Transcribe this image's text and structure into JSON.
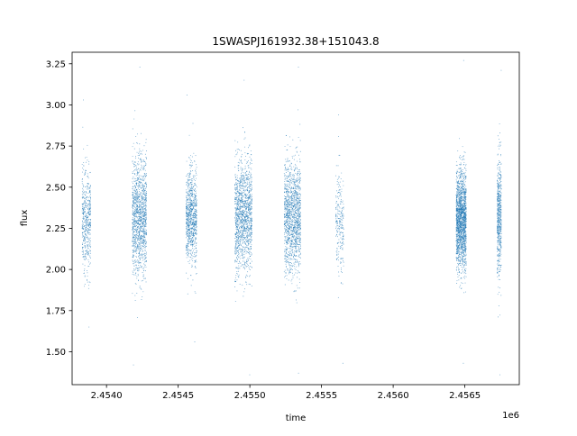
{
  "chart_data": {
    "type": "scatter",
    "title": "1SWASPJ161932.38+151043.8",
    "xlabel": "time",
    "ylabel": "flux",
    "x_offset_label": "1e6",
    "xlim": [
      2453760,
      2456880
    ],
    "ylim": [
      1.3,
      3.32
    ],
    "grid": false,
    "legend": "none",
    "marker_color": "#1f77b4",
    "x_ticks": [
      2453800,
      2454000,
      2454200,
      2454400,
      2454600,
      2454800,
      2455000,
      2455200,
      2455400,
      2455600,
      2455800,
      2456000,
      2456200,
      2456400,
      2456600,
      2456800
    ],
    "x_ticks_shown": [
      {
        "value": 2454000,
        "label": "2.4540"
      },
      {
        "value": 2454500,
        "label": "2.4545"
      },
      {
        "value": 2455000,
        "label": "2.4550"
      },
      {
        "value": 2455500,
        "label": "2.4555"
      },
      {
        "value": 2456000,
        "label": "2.4560"
      },
      {
        "value": 2456500,
        "label": "2.4565"
      }
    ],
    "y_ticks": [
      {
        "value": 1.5,
        "label": "1.50"
      },
      {
        "value": 1.75,
        "label": "1.75"
      },
      {
        "value": 2.0,
        "label": "2.00"
      },
      {
        "value": 2.25,
        "label": "2.25"
      },
      {
        "value": 2.5,
        "label": "2.50"
      },
      {
        "value": 2.75,
        "label": "2.75"
      },
      {
        "value": 3.0,
        "label": "3.00"
      },
      {
        "value": 3.25,
        "label": "3.25"
      }
    ],
    "seasons": [
      {
        "x_start": 2453830,
        "x_end": 2453890,
        "y_center": 2.32,
        "y_spread": 0.16,
        "y_min": 1.65,
        "y_max": 3.03,
        "points": 500
      },
      {
        "x_start": 2454180,
        "x_end": 2454280,
        "y_center": 2.32,
        "y_spread": 0.18,
        "y_min": 1.42,
        "y_max": 3.23,
        "points": 1300
      },
      {
        "x_start": 2454555,
        "x_end": 2454630,
        "y_center": 2.32,
        "y_spread": 0.15,
        "y_min": 1.56,
        "y_max": 3.06,
        "points": 900
      },
      {
        "x_start": 2454895,
        "x_end": 2455015,
        "y_center": 2.32,
        "y_spread": 0.17,
        "y_min": 1.36,
        "y_max": 3.15,
        "points": 1400
      },
      {
        "x_start": 2455240,
        "x_end": 2455355,
        "y_center": 2.32,
        "y_spread": 0.17,
        "y_min": 1.37,
        "y_max": 3.23,
        "points": 1400
      },
      {
        "x_start": 2455600,
        "x_end": 2455655,
        "y_center": 2.3,
        "y_spread": 0.16,
        "y_min": 1.43,
        "y_max": 2.94,
        "points": 250
      },
      {
        "x_start": 2456440,
        "x_end": 2456510,
        "y_center": 2.3,
        "y_spread": 0.15,
        "y_min": 1.43,
        "y_max": 3.27,
        "points": 1800
      },
      {
        "x_start": 2456725,
        "x_end": 2456755,
        "y_center": 2.32,
        "y_spread": 0.18,
        "y_min": 1.36,
        "y_max": 3.21,
        "points": 600
      }
    ]
  }
}
